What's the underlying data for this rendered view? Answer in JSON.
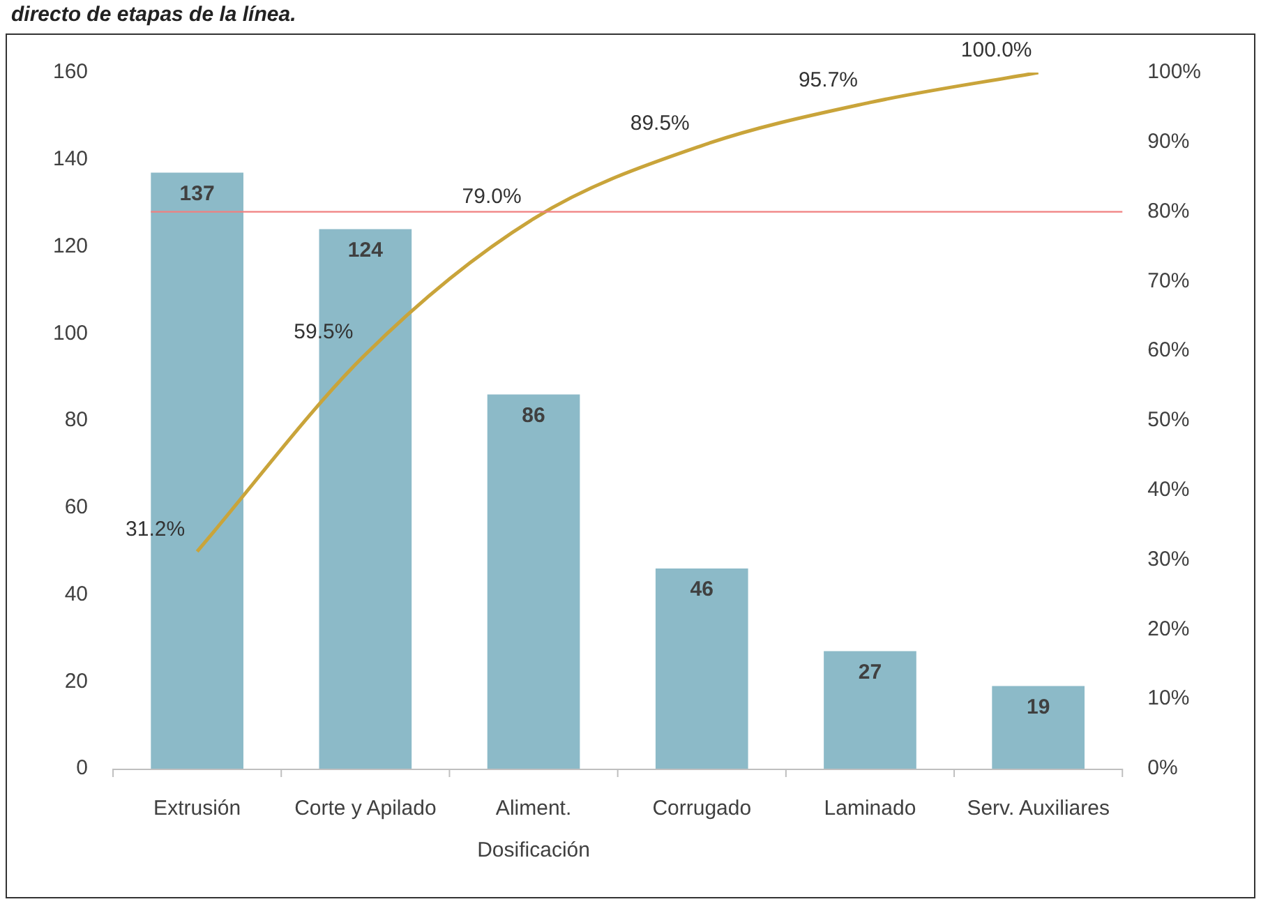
{
  "chart_data": {
    "type": "bar",
    "title": "directo de etapas de la línea.",
    "categories": [
      "Extrusión",
      "Corte y Apilado",
      "Aliment.\nDosificación",
      "Corrugado",
      "Laminado",
      "Serv. Auxiliares"
    ],
    "series": [
      {
        "color": "#8cbac8",
        "values": [
          137,
          124,
          86,
          46,
          27,
          19
        ],
        "value_labels": [
          "137",
          "124",
          "86",
          "46",
          "27",
          "19"
        ]
      },
      {
        "type": "line",
        "axis": "y2",
        "color": "#c9a43a",
        "values": [
          31.2,
          59.5,
          79.0,
          89.5,
          95.7,
          100.0
        ],
        "value_labels": [
          "31.2%",
          "59.5%",
          "79.0%",
          "89.5%",
          "95.7%",
          "100.0%"
        ],
        "marker": "none"
      }
    ],
    "ylim": [
      0,
      160
    ],
    "yticks": [
      0,
      20,
      40,
      60,
      80,
      100,
      120,
      140,
      160
    ],
    "y2lim": [
      0,
      100
    ],
    "y2ticks": [
      {
        "value": 0,
        "label": "0%"
      },
      {
        "value": 10,
        "label": "10%"
      },
      {
        "value": 20,
        "label": "20%"
      },
      {
        "value": 30,
        "label": "30%"
      },
      {
        "value": 40,
        "label": "40%"
      },
      {
        "value": 50,
        "label": "50%"
      },
      {
        "value": 60,
        "label": "60%"
      },
      {
        "value": 70,
        "label": "70%"
      },
      {
        "value": 80,
        "label": "80%"
      },
      {
        "value": 90,
        "label": "90%"
      },
      {
        "value": 100,
        "label": "100%"
      }
    ],
    "ref_lines": [
      {
        "axis": "y2",
        "value": 80,
        "color": "#f08080"
      }
    ],
    "grid": false,
    "legend": false
  }
}
